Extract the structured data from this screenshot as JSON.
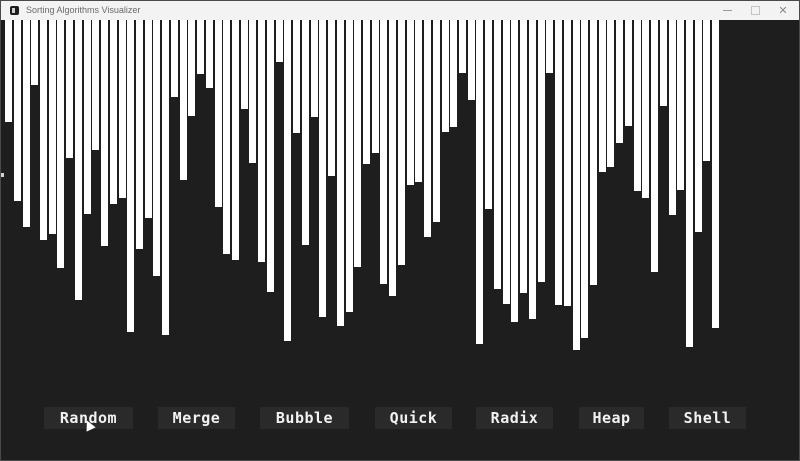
{
  "window": {
    "title": "Sorting Algorithms Visualizer",
    "minimize_icon": "minimize-icon",
    "maximize_icon": "maximize-icon",
    "close_icon": "close-icon",
    "close_glyph": "✕"
  },
  "visualizer": {
    "bar_color": "#ffffff",
    "background_color": "#1e1e1e",
    "max_value": 440,
    "bar_values": [
      102,
      181,
      207,
      65,
      220,
      214,
      248,
      138,
      280,
      194,
      130,
      226,
      184,
      178,
      312,
      229,
      198,
      256,
      315,
      77,
      160,
      96,
      54,
      68,
      187,
      234,
      240,
      89,
      143,
      242,
      272,
      42,
      321,
      113,
      225,
      97,
      297,
      156,
      306,
      292,
      247,
      144,
      133,
      264,
      276,
      245,
      165,
      162,
      217,
      202,
      112,
      107,
      53,
      80,
      324,
      189,
      269,
      284,
      302,
      273,
      299,
      262,
      53,
      285,
      286,
      330,
      318,
      265,
      152,
      147,
      123,
      106,
      171,
      178,
      252,
      86,
      195,
      170,
      327,
      212,
      141,
      308
    ]
  },
  "buttons": [
    {
      "label": "Random"
    },
    {
      "label": "Merge"
    },
    {
      "label": "Bubble"
    },
    {
      "label": "Quick"
    },
    {
      "label": "Radix"
    },
    {
      "label": "Heap"
    },
    {
      "label": "Shell"
    }
  ]
}
